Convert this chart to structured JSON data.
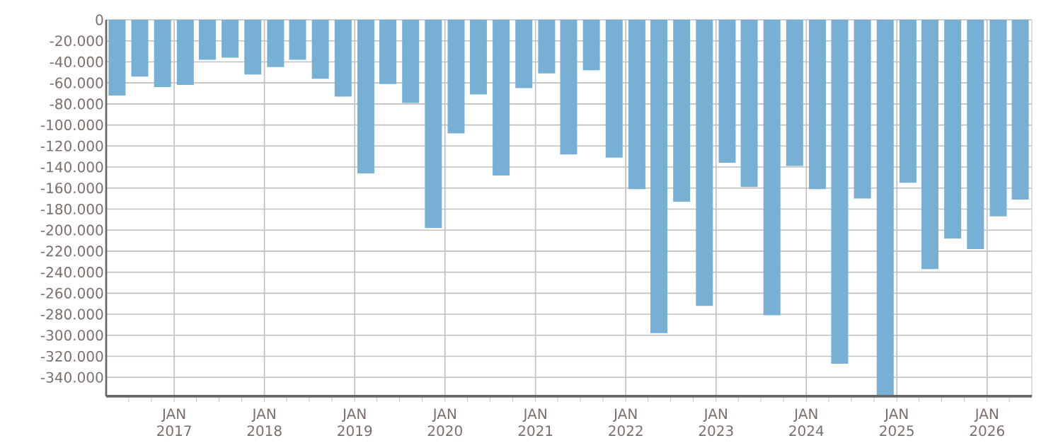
{
  "chart_data": {
    "type": "bar",
    "color": "#77b0d4",
    "grid": true,
    "x": [
      "2016-05-15",
      "2016-08-15",
      "2016-11-15",
      "2017-02-15",
      "2017-05-15",
      "2017-08-15",
      "2017-11-15",
      "2018-02-15",
      "2018-05-15",
      "2018-08-15",
      "2018-11-15",
      "2019-02-15",
      "2019-05-15",
      "2019-08-15",
      "2019-11-15",
      "2020-02-15",
      "2020-05-15",
      "2020-08-15",
      "2020-11-15",
      "2021-02-15",
      "2021-05-15",
      "2021-08-15",
      "2021-11-15",
      "2022-02-15",
      "2022-05-15",
      "2022-08-15",
      "2022-11-15",
      "2023-02-15",
      "2023-05-15",
      "2023-08-15",
      "2023-11-15",
      "2024-02-15",
      "2024-05-15",
      "2024-08-15",
      "2024-11-15",
      "2025-02-15",
      "2025-05-15",
      "2025-08-15",
      "2025-11-15",
      "2026-02-15",
      "2026-05-15"
    ],
    "values": [
      -72000,
      -54000,
      -64000,
      -62000,
      -38000,
      -36000,
      -52000,
      -45000,
      -38000,
      -56000,
      -73000,
      -146000,
      -61000,
      -79000,
      -198000,
      -108000,
      -71000,
      -148000,
      -65000,
      -51000,
      -128000,
      -48000,
      -131000,
      -161000,
      -298000,
      -173000,
      -272000,
      -136000,
      -159000,
      -281000,
      -139000,
      -161000,
      -327000,
      -170000,
      -358000,
      -155000,
      -237000,
      -208000,
      -218000,
      -187000,
      -171000
    ],
    "xlim": [
      "2016-04-01",
      "2026-07-01"
    ],
    "xticks": [
      {
        "value": "2016-07-01",
        "label": null
      },
      {
        "value": "2016-10-01",
        "label": null
      },
      {
        "value": "2017-01-01",
        "label": "JAN 2017"
      },
      {
        "value": "2017-04-01",
        "label": null
      },
      {
        "value": "2017-07-01",
        "label": null
      },
      {
        "value": "2017-10-01",
        "label": null
      },
      {
        "value": "2018-01-01",
        "label": "JAN 2018"
      },
      {
        "value": "2018-04-01",
        "label": null
      },
      {
        "value": "2018-07-01",
        "label": null
      },
      {
        "value": "2018-10-01",
        "label": null
      },
      {
        "value": "2019-01-01",
        "label": "JAN 2019"
      },
      {
        "value": "2019-04-01",
        "label": null
      },
      {
        "value": "2019-07-01",
        "label": null
      },
      {
        "value": "2019-10-01",
        "label": null
      },
      {
        "value": "2020-01-01",
        "label": "JAN 2020"
      },
      {
        "value": "2020-04-01",
        "label": null
      },
      {
        "value": "2020-07-01",
        "label": null
      },
      {
        "value": "2020-10-01",
        "label": null
      },
      {
        "value": "2021-01-01",
        "label": "JAN 2021"
      },
      {
        "value": "2021-04-01",
        "label": null
      },
      {
        "value": "2021-07-01",
        "label": null
      },
      {
        "value": "2021-10-01",
        "label": null
      },
      {
        "value": "2022-01-01",
        "label": "JAN 2022"
      },
      {
        "value": "2022-04-01",
        "label": null
      },
      {
        "value": "2022-07-01",
        "label": null
      },
      {
        "value": "2022-10-01",
        "label": null
      },
      {
        "value": "2023-01-01",
        "label": "JAN 2023"
      },
      {
        "value": "2023-04-01",
        "label": null
      },
      {
        "value": "2023-07-01",
        "label": null
      },
      {
        "value": "2023-10-01",
        "label": null
      },
      {
        "value": "2024-01-01",
        "label": "JAN 2024"
      },
      {
        "value": "2024-04-01",
        "label": null
      },
      {
        "value": "2024-07-01",
        "label": null
      },
      {
        "value": "2024-10-01",
        "label": null
      },
      {
        "value": "2025-01-01",
        "label": "JAN 2025"
      },
      {
        "value": "2025-04-01",
        "label": null
      },
      {
        "value": "2025-07-01",
        "label": null
      },
      {
        "value": "2025-10-01",
        "label": null
      },
      {
        "value": "2026-01-01",
        "label": "JAN 2026"
      },
      {
        "value": "2026-04-01",
        "label": null
      }
    ],
    "ylim": [
      -358000,
      0
    ],
    "yticks": [
      {
        "value": 0,
        "label": "0"
      },
      {
        "value": -20000,
        "label": "-20.000"
      },
      {
        "value": -40000,
        "label": "-40.000"
      },
      {
        "value": -60000,
        "label": "-60.000"
      },
      {
        "value": -80000,
        "label": "-80.000"
      },
      {
        "value": -100000,
        "label": "-100.000"
      },
      {
        "value": -120000,
        "label": "-120.000"
      },
      {
        "value": -140000,
        "label": "-140.000"
      },
      {
        "value": -160000,
        "label": "-160.000"
      },
      {
        "value": -180000,
        "label": "-180.000"
      },
      {
        "value": -200000,
        "label": "-200.000"
      },
      {
        "value": -220000,
        "label": "-220.000"
      },
      {
        "value": -240000,
        "label": "-240.000"
      },
      {
        "value": -260000,
        "label": "-260.000"
      },
      {
        "value": -280000,
        "label": "-280.000"
      },
      {
        "value": -300000,
        "label": "-300.000"
      },
      {
        "value": -320000,
        "label": "-320.000"
      },
      {
        "value": -340000,
        "label": "-340.000"
      }
    ]
  }
}
